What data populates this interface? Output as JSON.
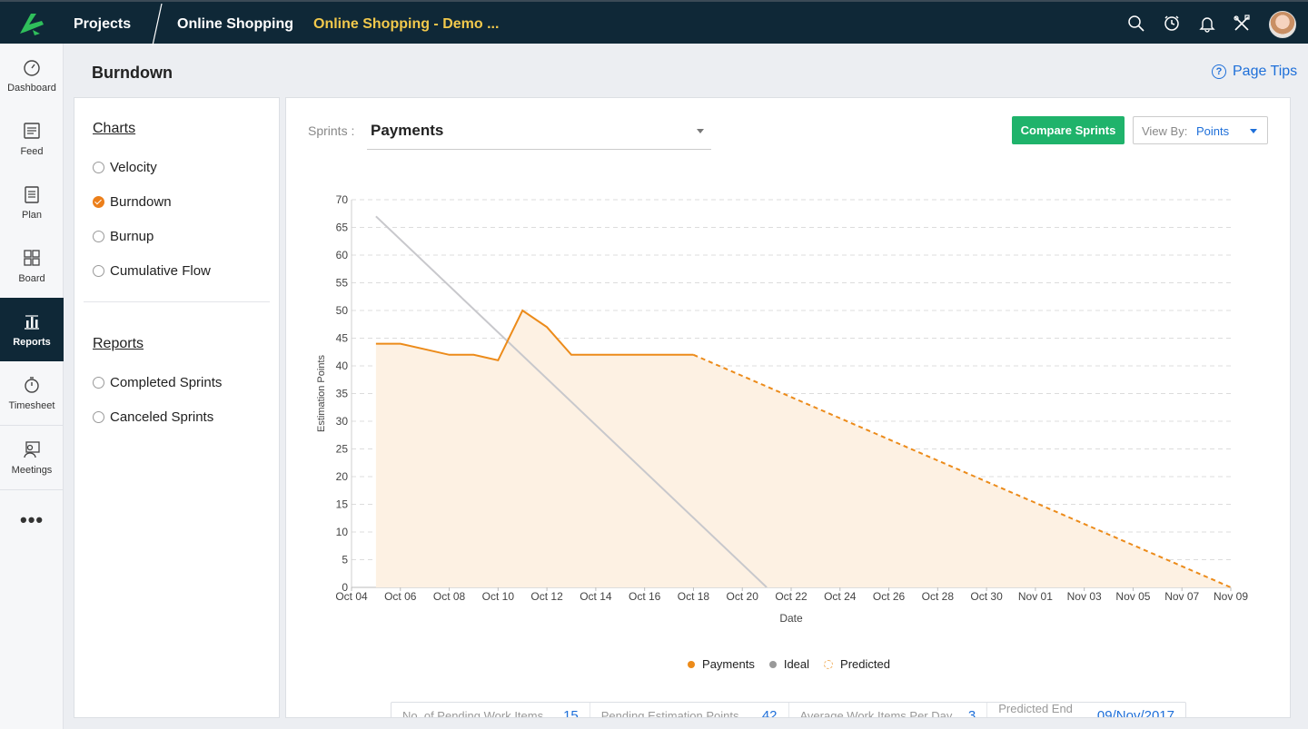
{
  "topbar": {
    "projects_label": "Projects",
    "project_name": "Online Shopping",
    "workspace_name": "Online Shopping - Demo ...",
    "icons": [
      "search-icon",
      "timer-icon",
      "bell-icon",
      "tools-icon",
      "avatar"
    ]
  },
  "sidebar": {
    "items": [
      {
        "label": "Dashboard",
        "icon": "gauge-icon"
      },
      {
        "label": "Feed",
        "icon": "feed-icon"
      },
      {
        "label": "Plan",
        "icon": "plan-icon"
      },
      {
        "label": "Board",
        "icon": "board-icon"
      },
      {
        "label": "Reports",
        "icon": "reports-icon",
        "active": true
      },
      {
        "label": "Timesheet",
        "icon": "stopwatch-icon"
      },
      {
        "label": "Meetings",
        "icon": "meetings-icon"
      }
    ],
    "more_label": "•••"
  },
  "page": {
    "title": "Burndown",
    "tips_label": "Page Tips"
  },
  "left_panel": {
    "charts_heading": "Charts",
    "charts": [
      {
        "label": "Velocity",
        "checked": false
      },
      {
        "label": "Burndown",
        "checked": true
      },
      {
        "label": "Burnup",
        "checked": false
      },
      {
        "label": "Cumulative Flow",
        "checked": false
      }
    ],
    "reports_heading": "Reports",
    "reports": [
      {
        "label": "Completed Sprints",
        "checked": false
      },
      {
        "label": "Canceled Sprints",
        "checked": false
      }
    ]
  },
  "toolbar": {
    "sprints_label": "Sprints :",
    "sprint_value": "Payments",
    "compare_label": "Compare Sprints",
    "viewby_label": "View By:",
    "viewby_value": "Points"
  },
  "colors": {
    "accent_orange": "#ec8b1a",
    "ideal_gray": "#c8c8cc",
    "fill": "#fdf1e3",
    "button_green": "#1fb36b",
    "link_blue": "#1e6fd9",
    "topbar": "#0f2837"
  },
  "chart_data": {
    "type": "line",
    "xlabel": "Date",
    "ylabel": "Estimation Points",
    "ylim": [
      0,
      70
    ],
    "yticks": [
      0,
      5,
      10,
      15,
      20,
      25,
      30,
      35,
      40,
      45,
      50,
      55,
      60,
      65,
      70
    ],
    "xticks": [
      "Oct 04",
      "Oct 06",
      "Oct 08",
      "Oct 10",
      "Oct 12",
      "Oct 14",
      "Oct 16",
      "Oct 18",
      "Oct 20",
      "Oct 22",
      "Oct 24",
      "Oct 26",
      "Oct 28",
      "Oct 30",
      "Nov 01",
      "Nov 03",
      "Nov 05",
      "Nov 07",
      "Nov 09"
    ],
    "x_start": "Oct 04",
    "grid": true,
    "legend_position": "bottom-center",
    "series": [
      {
        "name": "Payments",
        "style": "solid",
        "color": "#ec8b1a",
        "points": [
          [
            "Oct 05",
            44
          ],
          [
            "Oct 06",
            44
          ],
          [
            "Oct 07",
            43
          ],
          [
            "Oct 08",
            42
          ],
          [
            "Oct 09",
            42
          ],
          [
            "Oct 10",
            41
          ],
          [
            "Oct 11",
            50
          ],
          [
            "Oct 12",
            47
          ],
          [
            "Oct 13",
            42
          ],
          [
            "Oct 14",
            42
          ],
          [
            "Oct 15",
            42
          ],
          [
            "Oct 16",
            42
          ],
          [
            "Oct 17",
            42
          ],
          [
            "Oct 18",
            42
          ]
        ]
      },
      {
        "name": "Ideal",
        "style": "solid",
        "color": "#c8c8cc",
        "points": [
          [
            "Oct 05",
            67
          ],
          [
            "Oct 21",
            0
          ]
        ]
      },
      {
        "name": "Predicted",
        "style": "dashed",
        "color": "#ec8b1a",
        "points": [
          [
            "Oct 18",
            42
          ],
          [
            "Nov 09",
            0
          ]
        ]
      }
    ]
  },
  "stats": [
    {
      "label": "No. of Pending Work Items",
      "value": "15"
    },
    {
      "label": "Pending Estimation Points",
      "value": "42"
    },
    {
      "label": "Average Work Items Per Day",
      "value": "3"
    },
    {
      "label": "Predicted End Date",
      "value": "09/Nov/2017"
    }
  ]
}
